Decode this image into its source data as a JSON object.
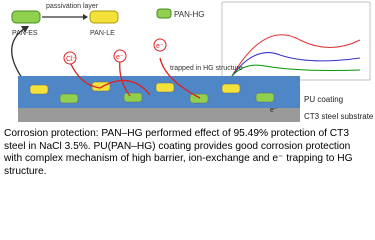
{
  "legend": {
    "passivation": "passivation layer",
    "es": "PAN-ES",
    "le": "PAN-LE",
    "hg": "PAN-HG"
  },
  "labels": {
    "trapped": "trapped in HG structure",
    "electron": "e⁻",
    "chloride": "Cl⁻",
    "coating": "PU coating",
    "steel": "CT3 steel substrate"
  },
  "caption": [
    "Corrosion protection: PAN–HG performed effect of 95.49% protection of CT3",
    "steel in NaCl 3.5%. PU(PAN–HG) coating provides good corrosion protection",
    "with complex mechanism of high barrier, ion-exchange and e⁻ trapping to HG",
    "structure."
  ]
}
